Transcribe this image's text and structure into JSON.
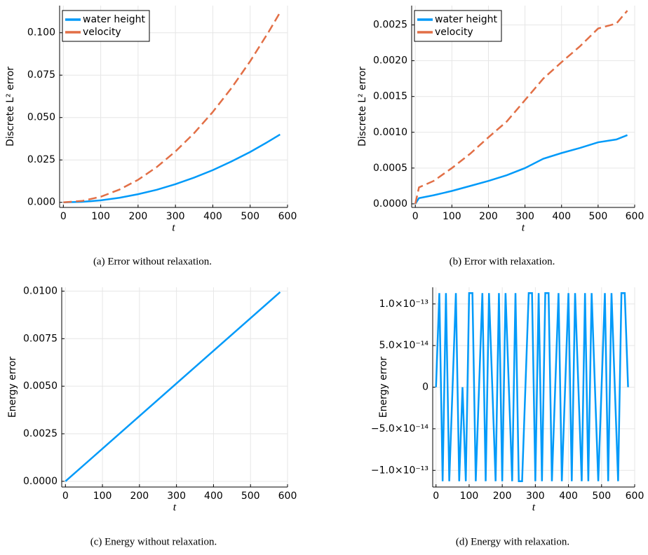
{
  "chart_data": [
    {
      "type": "line",
      "caption": "(a) Error without relaxation.",
      "xlabel": "t",
      "ylabel": "Discrete L² error",
      "x": [
        0,
        50,
        100,
        150,
        200,
        250,
        300,
        350,
        400,
        450,
        500,
        550,
        580
      ],
      "series": [
        {
          "name": "water height",
          "color": "#009af9",
          "style": "solid",
          "values": [
            0,
            0.0003,
            0.0012,
            0.0027,
            0.0048,
            0.0074,
            0.0107,
            0.0146,
            0.019,
            0.0241,
            0.0297,
            0.036,
            0.04
          ]
        },
        {
          "name": "velocity",
          "color": "#e26f46",
          "style": "dashed",
          "values": [
            0,
            0.0008,
            0.0033,
            0.0075,
            0.0133,
            0.0208,
            0.03,
            0.0408,
            0.0533,
            0.0674,
            0.0832,
            0.1007,
            0.112
          ]
        }
      ],
      "xlim": [
        -10,
        600
      ],
      "xticks": [
        0,
        100,
        200,
        300,
        400,
        500,
        600
      ],
      "ylim": [
        -0.003,
        0.116
      ],
      "yticks": [
        {
          "value": 0,
          "label": "0.000"
        },
        {
          "value": 0.025,
          "label": "0.025"
        },
        {
          "value": 0.05,
          "label": "0.050"
        },
        {
          "value": 0.075,
          "label": "0.075"
        },
        {
          "value": 0.1,
          "label": "0.100"
        }
      ],
      "grid": true,
      "legend": "top-left"
    },
    {
      "type": "line",
      "caption": "(b) Error with relaxation.",
      "xlabel": "t",
      "ylabel": "Discrete L² error",
      "x": [
        0,
        10,
        50,
        100,
        150,
        200,
        250,
        300,
        350,
        400,
        450,
        500,
        550,
        580
      ],
      "series": [
        {
          "name": "water height",
          "color": "#009af9",
          "style": "solid",
          "values": [
            0,
            8e-05,
            0.00012,
            0.00018,
            0.00025,
            0.00032,
            0.0004,
            0.0005,
            0.00063,
            0.00071,
            0.00078,
            0.00086,
            0.0009,
            0.00096
          ]
        },
        {
          "name": "velocity",
          "color": "#e26f46",
          "style": "dashed",
          "values": [
            0,
            0.00023,
            0.00032,
            0.0005,
            0.0007,
            0.00093,
            0.00115,
            0.00145,
            0.00175,
            0.00198,
            0.0022,
            0.00245,
            0.00252,
            0.0027
          ]
        }
      ],
      "xlim": [
        -10,
        600
      ],
      "xticks": [
        0,
        100,
        200,
        300,
        400,
        500,
        600
      ],
      "ylim": [
        -5e-05,
        0.00277
      ],
      "yticks": [
        {
          "value": 0,
          "label": "0.0000"
        },
        {
          "value": 0.0005,
          "label": "0.0005"
        },
        {
          "value": 0.001,
          "label": "0.0010"
        },
        {
          "value": 0.0015,
          "label": "0.0015"
        },
        {
          "value": 0.002,
          "label": "0.0020"
        },
        {
          "value": 0.0025,
          "label": "0.0025"
        }
      ],
      "grid": true,
      "legend": "top-left"
    },
    {
      "type": "line",
      "caption": "(c) Energy without relaxation.",
      "xlabel": "t",
      "ylabel": "Energy error",
      "x": [
        0,
        580
      ],
      "series": [
        {
          "color": "#009af9",
          "style": "solid",
          "values": [
            0,
            0.00995
          ]
        }
      ],
      "xlim": [
        -10,
        600
      ],
      "xticks": [
        0,
        100,
        200,
        300,
        400,
        500,
        600
      ],
      "ylim": [
        -0.0003,
        0.0102
      ],
      "yticks": [
        {
          "value": 0,
          "label": "0.0000"
        },
        {
          "value": 0.0025,
          "label": "0.0025"
        },
        {
          "value": 0.005,
          "label": "0.0050"
        },
        {
          "value": 0.0075,
          "label": "0.0075"
        },
        {
          "value": 0.01,
          "label": "0.0100"
        }
      ],
      "grid": true
    },
    {
      "type": "line",
      "caption": "(d) Energy with relaxation.",
      "xlabel": "t",
      "ylabel": "Energy error",
      "x": [
        0,
        10,
        20,
        30,
        40,
        50,
        60,
        70,
        80,
        90,
        100,
        110,
        120,
        130,
        140,
        150,
        160,
        170,
        180,
        190,
        200,
        210,
        220,
        230,
        240,
        250,
        260,
        270,
        280,
        290,
        300,
        310,
        320,
        330,
        340,
        350,
        360,
        370,
        380,
        390,
        400,
        410,
        420,
        430,
        440,
        450,
        460,
        470,
        480,
        490,
        500,
        510,
        520,
        530,
        540,
        550,
        560,
        570,
        580
      ],
      "series": [
        {
          "color": "#009af9",
          "style": "solid",
          "values": [
            0,
            1.13e-13,
            -1.13e-13,
            1.13e-13,
            -1.13e-13,
            0,
            1.13e-13,
            -1.13e-13,
            0,
            -1.13e-13,
            1.13e-13,
            1.13e-13,
            -1.13e-13,
            0,
            1.13e-13,
            -1.13e-13,
            1.13e-13,
            0,
            -1.13e-13,
            1.13e-13,
            -1.13e-13,
            1.13e-13,
            0,
            -1.13e-13,
            1.13e-13,
            -1.13e-13,
            -1.13e-13,
            0,
            1.13e-13,
            1.13e-13,
            -1.13e-13,
            1.13e-13,
            -1.13e-13,
            1.13e-13,
            1.13e-13,
            -1.13e-13,
            0,
            1.13e-13,
            -1.13e-13,
            0,
            1.13e-13,
            -1.13e-13,
            1.13e-13,
            0,
            -1.13e-13,
            1.13e-13,
            -1.13e-13,
            1.13e-13,
            0,
            -1.13e-13,
            0,
            1.13e-13,
            -1.13e-13,
            1.13e-13,
            0,
            -1.13e-13,
            1.13e-13,
            1.13e-13,
            0
          ]
        }
      ],
      "xlim": [
        -10,
        600
      ],
      "xticks": [
        0,
        100,
        200,
        300,
        400,
        500,
        600
      ],
      "ylim": [
        -1.2e-13,
        1.2e-13
      ],
      "yticks": [
        {
          "value": -1e-13,
          "label": "−1.0×10⁻¹³"
        },
        {
          "value": -5e-14,
          "label": "−5.0×10⁻¹⁴"
        },
        0,
        {
          "value": 5e-14,
          "label": "5.0×10⁻¹⁴"
        },
        {
          "value": 1e-13,
          "label": "1.0×10⁻¹³"
        }
      ],
      "grid": true
    }
  ]
}
